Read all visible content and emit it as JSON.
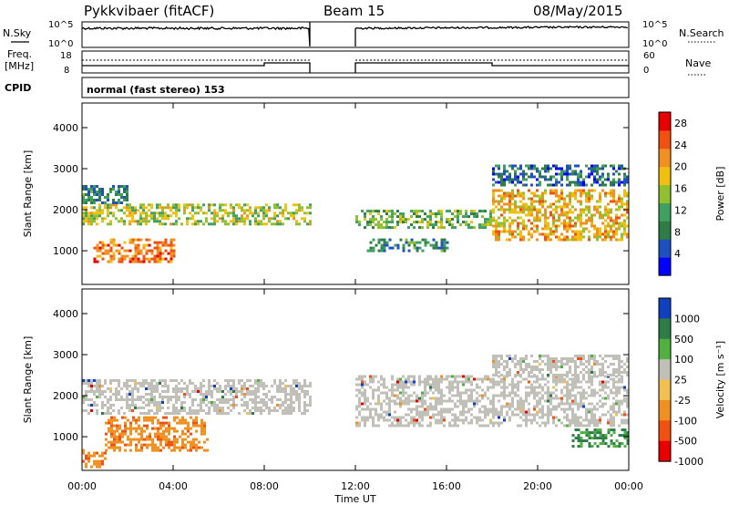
{
  "header": {
    "station": "Pykkvibaer (fitACF)",
    "beam": "Beam 15",
    "date": "08/May/2015",
    "mode": "normal (fast stereo) 153"
  },
  "aux": {
    "nsky_label": "N.Sky",
    "nsearch_label": "N.Search",
    "freq_label_line1": "Freq.",
    "freq_label_line2": "[MHz]",
    "nave_label": "Nave",
    "cpid_label": "CPID",
    "noise_ticks": [
      "10^5",
      "10^0"
    ],
    "freq_ticks": [
      "18",
      "8"
    ],
    "nave_ticks": [
      "60",
      "0"
    ]
  },
  "colors": {
    "frame": "#000000",
    "ground_scatter": "#c0c0b8"
  },
  "chart_data": [
    {
      "type": "heatmap",
      "title": "",
      "xlabel": "Time UT",
      "ylabel": "Slant Range [km]",
      "x_ticks": [
        "00:00",
        "04:00",
        "08:00",
        "12:00",
        "16:00",
        "20:00",
        "00:00"
      ],
      "y_ticks": [
        "1000",
        "2000",
        "3000",
        "4000"
      ],
      "xlim_hours": [
        0,
        24
      ],
      "ylim_km": [
        180,
        4600
      ],
      "data_gap_hours": [
        10,
        12
      ],
      "colorbar": {
        "label": "Power [dB]",
        "ticks": [
          "4",
          "8",
          "12",
          "16",
          "20",
          "24",
          "28"
        ],
        "range": [
          0,
          30
        ],
        "colors": [
          "#0000ff",
          "#2050c0",
          "#2e7d46",
          "#40a060",
          "#90c030",
          "#f0c010",
          "#f09020",
          "#f05010",
          "#e80000"
        ]
      },
      "echo_bands": [
        {
          "t": [
            0,
            10
          ],
          "range_km": [
            1650,
            2150
          ],
          "power_db": 16
        },
        {
          "t": [
            0,
            2
          ],
          "range_km": [
            2200,
            2600
          ],
          "power_db": 8
        },
        {
          "t": [
            0.5,
            4
          ],
          "range_km": [
            750,
            1300
          ],
          "power_db": 24
        },
        {
          "t": [
            12,
            18
          ],
          "range_km": [
            1600,
            2000
          ],
          "power_db": 12
        },
        {
          "t": [
            12.5,
            16
          ],
          "range_km": [
            1000,
            1300
          ],
          "power_db": 8
        },
        {
          "t": [
            18,
            24
          ],
          "range_km": [
            1300,
            2500
          ],
          "power_db": 20
        },
        {
          "t": [
            18,
            24
          ],
          "range_km": [
            2600,
            3100
          ],
          "power_db": 6
        }
      ]
    },
    {
      "type": "heatmap",
      "title": "",
      "xlabel": "Time UT",
      "ylabel": "Slant Range [km]",
      "x_ticks": [
        "00:00",
        "04:00",
        "08:00",
        "12:00",
        "16:00",
        "20:00",
        "00:00"
      ],
      "y_ticks": [
        "1000",
        "2000",
        "3000",
        "4000"
      ],
      "xlim_hours": [
        0,
        24
      ],
      "ylim_km": [
        180,
        4600
      ],
      "colorbar": {
        "label": "Velocity [m s⁻¹]",
        "ticks": [
          "1000",
          "500",
          "100",
          "25",
          "-25",
          "-100",
          "-500",
          "-1000"
        ],
        "colors": [
          "#1040c0",
          "#2e7d46",
          "#50b040",
          "#c0c0b8",
          "#f0c050",
          "#f09020",
          "#f05010",
          "#e80000"
        ]
      },
      "echo_bands": [
        {
          "t": [
            0,
            10
          ],
          "range_km": [
            1600,
            2400
          ],
          "velocity_ms": 0,
          "ground_scatter": true
        },
        {
          "t": [
            1,
            5.5
          ],
          "range_km": [
            650,
            1500
          ],
          "velocity_ms": -300
        },
        {
          "t": [
            0,
            1
          ],
          "range_km": [
            300,
            700
          ],
          "velocity_ms": -300
        },
        {
          "t": [
            12,
            24
          ],
          "range_km": [
            1300,
            2500
          ],
          "velocity_ms": 0,
          "ground_scatter": true
        },
        {
          "t": [
            18,
            24
          ],
          "range_km": [
            2500,
            3000
          ],
          "velocity_ms": 0,
          "ground_scatter": true
        },
        {
          "t": [
            21.5,
            24
          ],
          "range_km": [
            800,
            1200
          ],
          "velocity_ms": 300
        }
      ]
    }
  ]
}
